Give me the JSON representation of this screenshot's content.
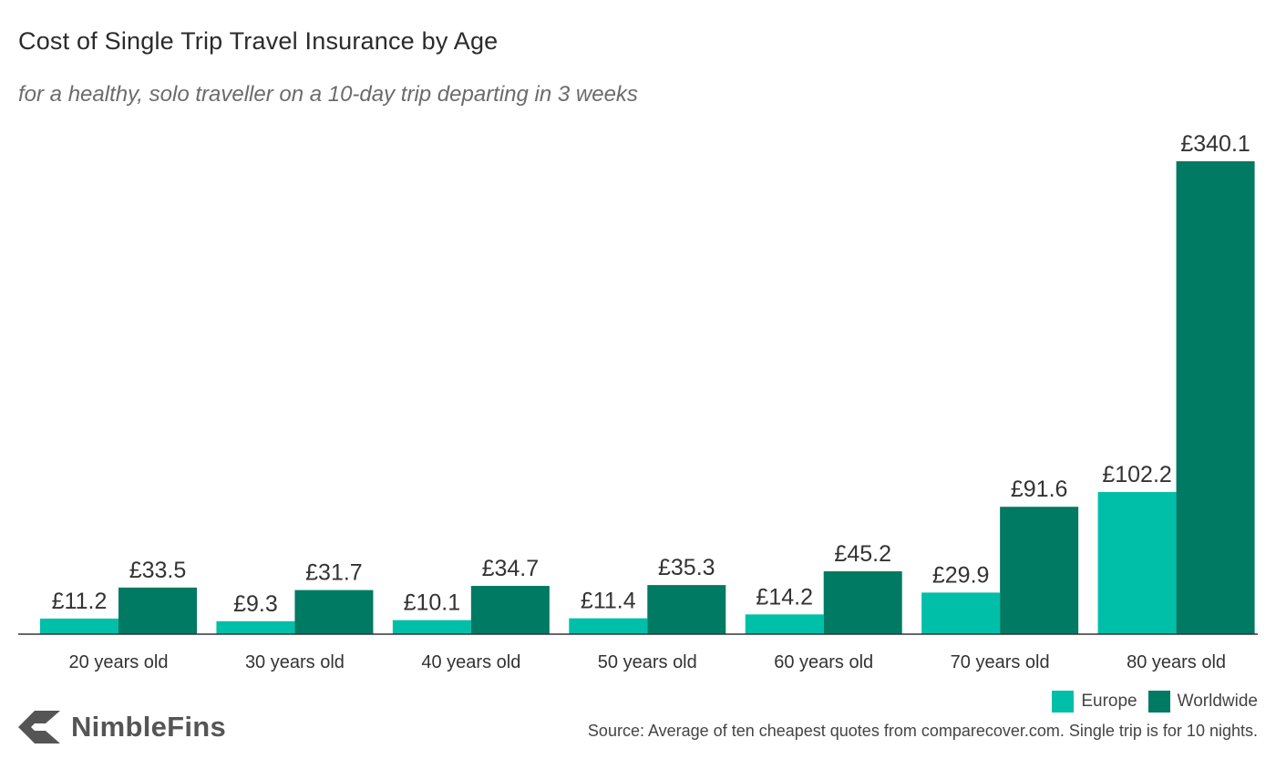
{
  "title": "Cost of Single Trip Travel Insurance by Age",
  "subtitle": "for a healthy, solo traveller on a 10-day trip departing in 3 weeks",
  "colors": {
    "europe": "#00bfa9",
    "worldwide": "#007a63",
    "axis": "#333333"
  },
  "chart_data": {
    "type": "bar",
    "title": "Cost of Single Trip Travel Insurance by Age",
    "xlabel": "",
    "ylabel": "",
    "ylim": [
      0,
      340.1
    ],
    "grid": false,
    "legend_position": "bottom-right",
    "value_prefix": "£",
    "categories": [
      "20 years old",
      "30 years old",
      "40 years old",
      "50 years old",
      "60 years old",
      "70 years old",
      "80 years old"
    ],
    "series": [
      {
        "name": "Europe",
        "values": [
          11.2,
          9.3,
          10.1,
          11.4,
          14.2,
          29.9,
          102.2
        ]
      },
      {
        "name": "Worldwide",
        "values": [
          33.5,
          31.7,
          34.7,
          35.3,
          45.2,
          91.6,
          340.1
        ]
      }
    ]
  },
  "legend": {
    "europe_label": "Europe",
    "worldwide_label": "Worldwide"
  },
  "brand": {
    "name": "NimbleFins",
    "icon": "nimblefins-arrow-icon"
  },
  "source": "Source: Average of ten cheapest quotes from comparecover.com. Single trip is for 10 nights."
}
